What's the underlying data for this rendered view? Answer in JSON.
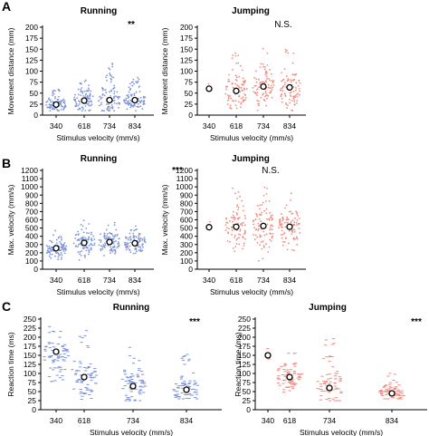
{
  "panel_letters": [
    "A",
    "B",
    "C"
  ],
  "colors": {
    "running": "#7f94d9",
    "jumping": "#f08c82",
    "mean_marker": "#000000"
  },
  "chart_data": [
    {
      "type": "scatter",
      "panel": "A",
      "title": "Running",
      "significance": "**",
      "xlabel": "Stimulus velocity (mm/s)",
      "ylabel": "Movement distance (mm)",
      "ylim": [
        0,
        200
      ],
      "yticks": [
        0,
        25,
        50,
        75,
        100,
        125,
        150,
        175,
        200
      ],
      "categories": [
        "340",
        "618",
        "734",
        "834"
      ],
      "color": "running",
      "means": [
        24,
        33,
        34,
        34
      ],
      "spread": [
        [
          10,
          60
        ],
        [
          10,
          85
        ],
        [
          10,
          120
        ],
        [
          10,
          90
        ]
      ]
    },
    {
      "type": "scatter",
      "panel": "A",
      "title": "Jumping",
      "significance": "N.S.",
      "xlabel": "Stimulus velocity (mm/s)",
      "ylabel": "Movement distance (mm)",
      "ylim": [
        0,
        200
      ],
      "yticks": [
        0,
        25,
        50,
        75,
        100,
        125,
        150,
        175,
        200
      ],
      "categories": [
        "340",
        "618",
        "734",
        "834"
      ],
      "color": "jumping",
      "means": [
        60,
        55,
        65,
        63
      ],
      "spread": [
        [
          55,
          75
        ],
        [
          15,
          150
        ],
        [
          10,
          155
        ],
        [
          10,
          150
        ]
      ]
    },
    {
      "type": "scatter",
      "panel": "B",
      "title": "Running",
      "significance": "***",
      "xlabel": "Stimulus velocity (mm/s)",
      "ylabel": "Max. velocity (mm/s)",
      "ylim": [
        0,
        1200
      ],
      "yticks": [
        0,
        100,
        200,
        300,
        400,
        500,
        600,
        700,
        800,
        900,
        1000,
        1100,
        1200
      ],
      "categories": [
        "340",
        "618",
        "734",
        "834"
      ],
      "color": "running",
      "means": [
        255,
        320,
        330,
        315
      ],
      "spread": [
        [
          120,
          480
        ],
        [
          100,
          600
        ],
        [
          120,
          650
        ],
        [
          120,
          550
        ]
      ]
    },
    {
      "type": "scatter",
      "panel": "B",
      "title": "Jumping",
      "significance": "N.S.",
      "xlabel": "Stimulus velocity (mm/s)",
      "ylabel": "Max. velocity (mm/s)",
      "ylim": [
        0,
        1200
      ],
      "yticks": [
        0,
        100,
        200,
        300,
        400,
        500,
        600,
        700,
        800,
        900,
        1000,
        1100,
        1200
      ],
      "categories": [
        "340",
        "618",
        "734",
        "834"
      ],
      "color": "jumping",
      "means": [
        510,
        515,
        525,
        515
      ],
      "spread": [
        [
          430,
          600
        ],
        [
          200,
          1050
        ],
        [
          100,
          1000
        ],
        [
          200,
          950
        ]
      ]
    },
    {
      "type": "scatter",
      "panel": "C",
      "title": "Running",
      "significance": "***",
      "xlabel": "Stimulus velocity (mm/s)",
      "ylabel": "Reaction time (ms)",
      "ylim": [
        0,
        250
      ],
      "yticks": [
        0,
        25,
        50,
        75,
        100,
        125,
        150,
        175,
        200,
        225,
        250
      ],
      "categories": [
        "340",
        "618",
        "734",
        "834"
      ],
      "color": "running",
      "means": [
        160,
        90,
        65,
        55
      ],
      "spread": [
        [
          30,
          230
        ],
        [
          25,
          230
        ],
        [
          25,
          190
        ],
        [
          30,
          165
        ]
      ]
    },
    {
      "type": "scatter",
      "panel": "C",
      "title": "Jumping",
      "significance": "***",
      "xlabel": "Stimulus velocity (mm/s)",
      "ylabel": "Reaction time (ms)",
      "ylim": [
        0,
        250
      ],
      "yticks": [
        0,
        25,
        50,
        75,
        100,
        125,
        150,
        175,
        200,
        225,
        250
      ],
      "categories": [
        "340",
        "618",
        "734",
        "834"
      ],
      "color": "jumping",
      "means": [
        150,
        90,
        60,
        45
      ],
      "spread": [
        [
          110,
          180
        ],
        [
          40,
          185
        ],
        [
          25,
          205
        ],
        [
          30,
          105
        ]
      ]
    }
  ]
}
